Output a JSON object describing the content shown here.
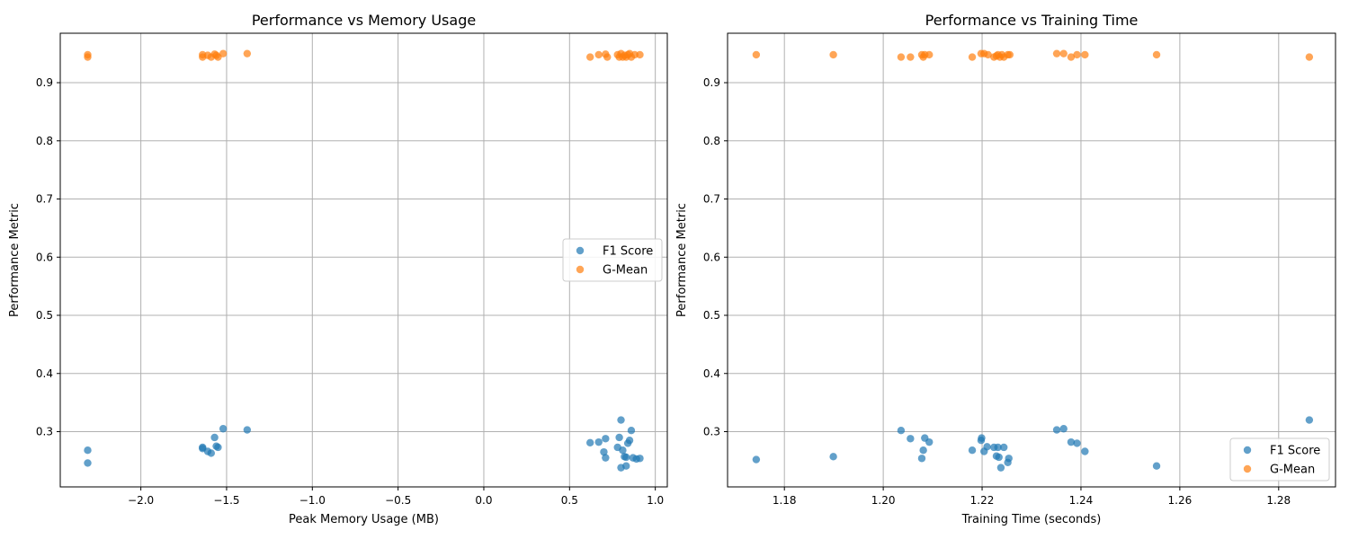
{
  "chart_data": [
    {
      "type": "scatter",
      "title": "Performance vs Memory Usage",
      "xlabel": "Peak Memory Usage (MB)",
      "ylabel": "Performance Metric",
      "xlim": [
        -2.47,
        1.07
      ],
      "ylim": [
        0.205,
        0.985
      ],
      "xticks": [
        -2.0,
        -1.5,
        -1.0,
        -0.5,
        0.0,
        0.5,
        1.0
      ],
      "xtick_labels": [
        "−2.0",
        "−1.5",
        "−1.0",
        "−0.5",
        "0.0",
        "0.5",
        "1.0"
      ],
      "yticks": [
        0.3,
        0.4,
        0.5,
        0.6,
        0.7,
        0.8,
        0.9
      ],
      "ytick_labels": [
        "0.3",
        "0.4",
        "0.5",
        "0.6",
        "0.7",
        "0.8",
        "0.9"
      ],
      "grid": true,
      "legend_position": "center-right",
      "series": [
        {
          "name": "F1 Score",
          "color": "#1f77b4",
          "points": [
            [
              -2.31,
              0.268
            ],
            [
              -2.31,
              0.246
            ],
            [
              -1.64,
              0.273
            ],
            [
              -1.64,
              0.271
            ],
            [
              -1.61,
              0.266
            ],
            [
              -1.59,
              0.263
            ],
            [
              -1.57,
              0.29
            ],
            [
              -1.56,
              0.275
            ],
            [
              -1.55,
              0.273
            ],
            [
              -1.52,
              0.305
            ],
            [
              -1.38,
              0.303
            ],
            [
              0.62,
              0.281
            ],
            [
              0.67,
              0.282
            ],
            [
              0.71,
              0.288
            ],
            [
              0.7,
              0.265
            ],
            [
              0.71,
              0.255
            ],
            [
              0.78,
              0.273
            ],
            [
              0.79,
              0.29
            ],
            [
              0.8,
              0.32
            ],
            [
              0.81,
              0.268
            ],
            [
              0.8,
              0.238
            ],
            [
              0.82,
              0.257
            ],
            [
              0.83,
              0.256
            ],
            [
              0.83,
              0.241
            ],
            [
              0.84,
              0.28
            ],
            [
              0.85,
              0.285
            ],
            [
              0.86,
              0.302
            ],
            [
              0.87,
              0.255
            ],
            [
              0.89,
              0.253
            ],
            [
              0.91,
              0.254
            ]
          ]
        },
        {
          "name": "G-Mean",
          "color": "#ff7f0e",
          "points": [
            [
              -2.31,
              0.948
            ],
            [
              -2.31,
              0.944
            ],
            [
              -1.64,
              0.948
            ],
            [
              -1.64,
              0.944
            ],
            [
              -1.61,
              0.947
            ],
            [
              -1.59,
              0.944
            ],
            [
              -1.57,
              0.949
            ],
            [
              -1.56,
              0.947
            ],
            [
              -1.55,
              0.944
            ],
            [
              -1.52,
              0.95
            ],
            [
              -1.38,
              0.95
            ],
            [
              0.62,
              0.944
            ],
            [
              0.67,
              0.948
            ],
            [
              0.71,
              0.949
            ],
            [
              0.72,
              0.944
            ],
            [
              0.78,
              0.948
            ],
            [
              0.79,
              0.944
            ],
            [
              0.8,
              0.95
            ],
            [
              0.81,
              0.944
            ],
            [
              0.82,
              0.947
            ],
            [
              0.83,
              0.944
            ],
            [
              0.84,
              0.948
            ],
            [
              0.85,
              0.95
            ],
            [
              0.86,
              0.944
            ],
            [
              0.88,
              0.948
            ],
            [
              0.91,
              0.948
            ]
          ]
        }
      ]
    },
    {
      "type": "scatter",
      "title": "Performance vs Training Time",
      "xlabel": "Training Time (seconds)",
      "ylabel": "Performance Metric",
      "xlim": [
        1.1685,
        1.2915
      ],
      "ylim": [
        0.205,
        0.985
      ],
      "xticks": [
        1.18,
        1.2,
        1.22,
        1.24,
        1.26,
        1.28
      ],
      "xtick_labels": [
        "1.18",
        "1.20",
        "1.22",
        "1.24",
        "1.26",
        "1.28"
      ],
      "yticks": [
        0.3,
        0.4,
        0.5,
        0.6,
        0.7,
        0.8,
        0.9
      ],
      "ytick_labels": [
        "0.3",
        "0.4",
        "0.5",
        "0.6",
        "0.7",
        "0.8",
        "0.9"
      ],
      "grid": true,
      "legend_position": "lower-right",
      "series": [
        {
          "name": "F1 Score",
          "color": "#1f77b4",
          "points": [
            [
              1.1743,
              0.252
            ],
            [
              1.1899,
              0.257
            ],
            [
              1.2036,
              0.302
            ],
            [
              1.2055,
              0.288
            ],
            [
              1.2078,
              0.254
            ],
            [
              1.2081,
              0.268
            ],
            [
              1.2084,
              0.289
            ],
            [
              1.2093,
              0.282
            ],
            [
              1.218,
              0.268
            ],
            [
              1.2198,
              0.285
            ],
            [
              1.2199,
              0.289
            ],
            [
              1.2204,
              0.266
            ],
            [
              1.221,
              0.274
            ],
            [
              1.2224,
              0.273
            ],
            [
              1.2229,
              0.258
            ],
            [
              1.2232,
              0.273
            ],
            [
              1.2234,
              0.256
            ],
            [
              1.2238,
              0.238
            ],
            [
              1.2244,
              0.273
            ],
            [
              1.2252,
              0.247
            ],
            [
              1.2254,
              0.254
            ],
            [
              1.2351,
              0.303
            ],
            [
              1.2365,
              0.305
            ],
            [
              1.238,
              0.282
            ],
            [
              1.2392,
              0.28
            ],
            [
              1.2408,
              0.266
            ],
            [
              1.2553,
              0.241
            ],
            [
              1.2862,
              0.32
            ]
          ]
        },
        {
          "name": "G-Mean",
          "color": "#ff7f0e",
          "points": [
            [
              1.1743,
              0.948
            ],
            [
              1.1899,
              0.948
            ],
            [
              1.2036,
              0.944
            ],
            [
              1.2055,
              0.944
            ],
            [
              1.2078,
              0.948
            ],
            [
              1.2081,
              0.944
            ],
            [
              1.2084,
              0.948
            ],
            [
              1.2093,
              0.948
            ],
            [
              1.218,
              0.944
            ],
            [
              1.2198,
              0.95
            ],
            [
              1.2204,
              0.95
            ],
            [
              1.2212,
              0.948
            ],
            [
              1.2224,
              0.944
            ],
            [
              1.2229,
              0.946
            ],
            [
              1.2232,
              0.948
            ],
            [
              1.2236,
              0.944
            ],
            [
              1.224,
              0.948
            ],
            [
              1.2244,
              0.944
            ],
            [
              1.2252,
              0.948
            ],
            [
              1.2256,
              0.948
            ],
            [
              1.2351,
              0.95
            ],
            [
              1.2365,
              0.95
            ],
            [
              1.238,
              0.944
            ],
            [
              1.2392,
              0.948
            ],
            [
              1.2408,
              0.948
            ],
            [
              1.2553,
              0.948
            ],
            [
              1.2862,
              0.944
            ]
          ]
        }
      ]
    }
  ]
}
